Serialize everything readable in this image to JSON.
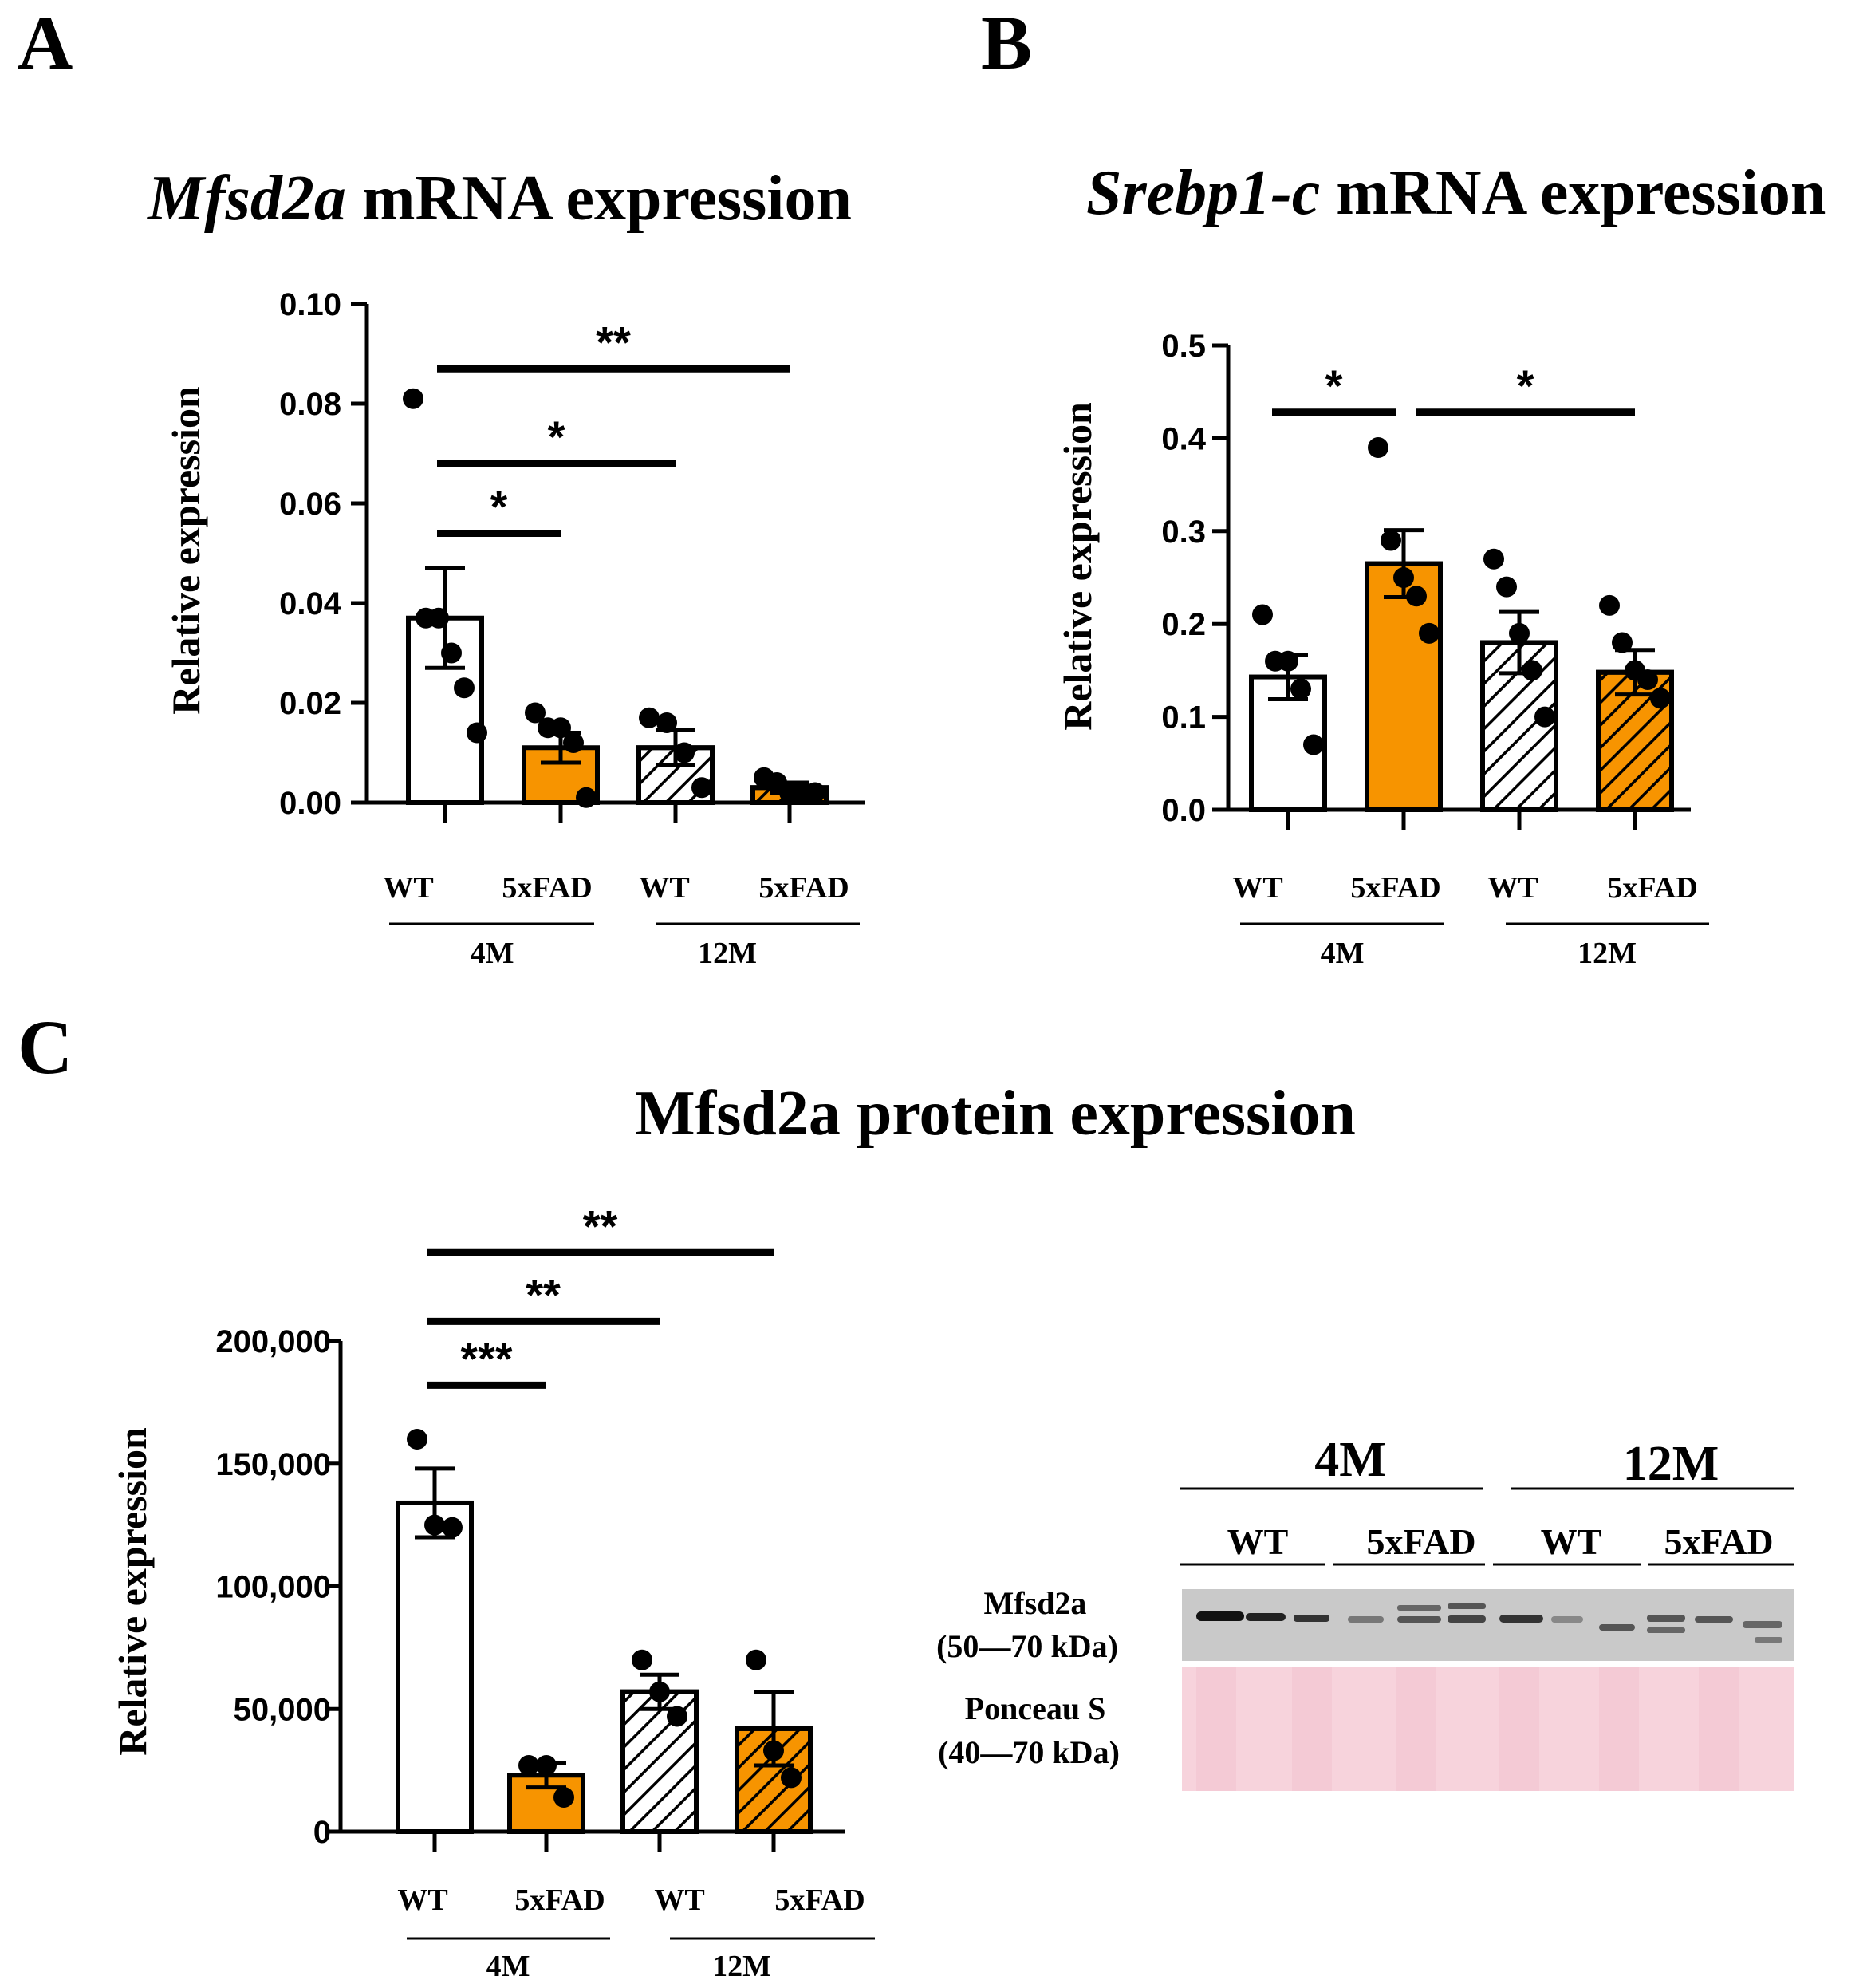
{
  "panels": {
    "A": {
      "letter": "A",
      "title_gene": "Mfsd2a",
      "title_rest": " mRNA expression"
    },
    "B": {
      "letter": "B",
      "title_gene": "Srebp1-c",
      "title_rest": " mRNA expression"
    },
    "C": {
      "letter": "C",
      "title": "Mfsd2a protein expression"
    }
  },
  "colors": {
    "wt": "#ffffff",
    "fad": "#f79400",
    "line": "#000000",
    "ponceau": "#f7d3dc",
    "blot": "#c9c9c9"
  },
  "chart_data": [
    {
      "id": "A",
      "type": "bar",
      "title": "Mfsd2a mRNA expression",
      "ylabel": "Relative expression",
      "ylim": [
        0,
        0.1
      ],
      "yticks": [
        0,
        0.02,
        0.04,
        0.06,
        0.08,
        0.1
      ],
      "ytick_labels": [
        "0.00",
        "0.02",
        "0.04",
        "0.06",
        "0.08",
        "0.10"
      ],
      "categories": [
        "WT",
        "5xFAD",
        "WT",
        "5xFAD"
      ],
      "age_groups": [
        "4M",
        "12M"
      ],
      "bar_style": [
        "white",
        "orange",
        "white-hatched",
        "orange-hatched"
      ],
      "values": [
        0.037,
        0.011,
        0.011,
        0.003
      ],
      "errors": [
        0.01,
        0.003,
        0.0035,
        0.001
      ],
      "points": [
        [
          0.081,
          0.037,
          0.037,
          0.03,
          0.023,
          0.014
        ],
        [
          0.018,
          0.015,
          0.015,
          0.012,
          0.001
        ],
        [
          0.017,
          0.016,
          0.01,
          0.003
        ],
        [
          0.005,
          0.004,
          0.002,
          0.002,
          0.002
        ]
      ],
      "significance": [
        {
          "from": 0,
          "to": 1,
          "label": "*",
          "level": 0.054
        },
        {
          "from": 0,
          "to": 2,
          "label": "*",
          "level": 0.068
        },
        {
          "from": 0,
          "to": 3,
          "label": "**",
          "level": 0.087
        }
      ]
    },
    {
      "id": "B",
      "type": "bar",
      "title": "Srebp1-c mRNA expression",
      "ylabel": "Relative expression",
      "ylim": [
        0,
        0.5
      ],
      "yticks": [
        0,
        0.1,
        0.2,
        0.3,
        0.4,
        0.5
      ],
      "ytick_labels": [
        "0.0",
        "0.1",
        "0.2",
        "0.3",
        "0.4",
        "0.5"
      ],
      "categories": [
        "WT",
        "5xFAD",
        "WT",
        "5xFAD"
      ],
      "age_groups": [
        "4M",
        "12M"
      ],
      "bar_style": [
        "white",
        "orange",
        "white-hatched",
        "orange-hatched"
      ],
      "values": [
        0.143,
        0.265,
        0.18,
        0.148
      ],
      "errors": [
        0.024,
        0.036,
        0.033,
        0.024
      ],
      "points": [
        [
          0.21,
          0.16,
          0.16,
          0.13,
          0.07
        ],
        [
          0.39,
          0.29,
          0.25,
          0.23,
          0.19
        ],
        [
          0.27,
          0.24,
          0.19,
          0.15,
          0.1
        ],
        [
          0.22,
          0.18,
          0.15,
          0.14,
          0.12
        ]
      ],
      "significance": [
        {
          "from": 0,
          "to": 1,
          "label": "*",
          "level": 0.428
        },
        {
          "from": 1,
          "to": 3,
          "label": "*",
          "level": 0.428
        }
      ]
    },
    {
      "id": "C",
      "type": "bar",
      "title": "Mfsd2a protein expression",
      "ylabel": "Relative expression",
      "ylim": [
        0,
        200000
      ],
      "yticks": [
        0,
        50000,
        100000,
        150000,
        200000
      ],
      "ytick_labels": [
        "0",
        "50,000",
        "100,000",
        "150,000",
        "200,000"
      ],
      "categories": [
        "WT",
        "5xFAD",
        "WT",
        "5xFAD"
      ],
      "age_groups": [
        "4M",
        "12M"
      ],
      "bar_style": [
        "white",
        "orange",
        "white-hatched",
        "orange-hatched"
      ],
      "values": [
        134000,
        23000,
        57000,
        42000
      ],
      "errors": [
        14000,
        5000,
        7000,
        15000
      ],
      "points": [
        [
          160000,
          125000,
          124000
        ],
        [
          27000,
          27000,
          14000
        ],
        [
          70000,
          57000,
          47000
        ],
        [
          70000,
          33000,
          22000
        ]
      ],
      "significance": [
        {
          "from": 0,
          "to": 1,
          "label": "***",
          "level": 182000
        },
        {
          "from": 0,
          "to": 2,
          "label": "**",
          "level": 208000
        },
        {
          "from": 0,
          "to": 3,
          "label": "**",
          "level": 236000
        }
      ]
    }
  ],
  "blot": {
    "age_groups": [
      "4M",
      "12M"
    ],
    "genotypes": [
      "WT",
      "5xFAD",
      "WT",
      "5xFAD"
    ],
    "rows": [
      {
        "name": "Mfsd2a",
        "range": "(50—70 kDa)"
      },
      {
        "name": "Ponceau S",
        "range": "(40—70 kDa)"
      }
    ]
  }
}
